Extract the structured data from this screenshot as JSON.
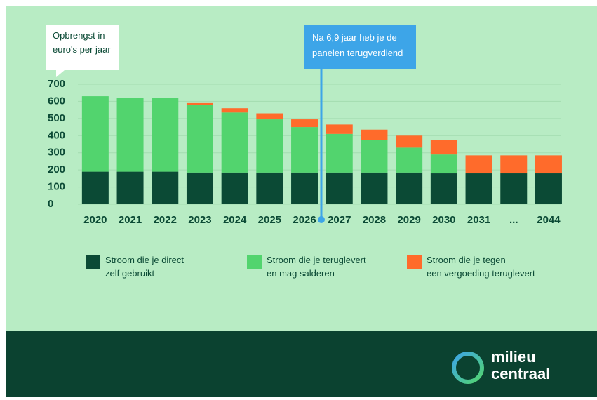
{
  "chart_data": {
    "type": "bar",
    "stacked": true,
    "y_label": "Opbrengst in\neuro's per jaar",
    "annotation": "Na 6,9 jaar heb je de\npanelen terugverdiend",
    "categories": [
      "2020",
      "2021",
      "2022",
      "2023",
      "2024",
      "2025",
      "2026",
      "2027",
      "2028",
      "2029",
      "2030",
      "2031",
      "...",
      "2044"
    ],
    "series": [
      {
        "name": "Stroom die je direct\nzelf gebruikt",
        "color": "#0b4a35",
        "values": [
          190,
          190,
          190,
          185,
          185,
          185,
          185,
          185,
          185,
          185,
          180,
          180,
          180,
          180
        ]
      },
      {
        "name": "Stroom die je teruglevert\nen mag salderen",
        "color": "#52d46e",
        "values": [
          440,
          430,
          430,
          395,
          350,
          310,
          265,
          225,
          190,
          145,
          110,
          0,
          0,
          0
        ]
      },
      {
        "name": "Stroom die je tegen\neen vergoeding teruglevert",
        "color": "#ff6b2b",
        "values": [
          0,
          0,
          0,
          10,
          25,
          35,
          45,
          55,
          60,
          70,
          85,
          105,
          105,
          105
        ]
      }
    ],
    "ylim": [
      0,
      700
    ],
    "yticks": [
      0,
      100,
      200,
      300,
      400,
      500,
      600,
      700
    ],
    "grid": true,
    "brand": "milieu\ncentraal"
  }
}
